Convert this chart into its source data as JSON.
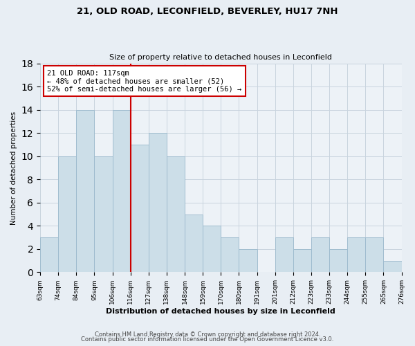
{
  "title1": "21, OLD ROAD, LECONFIELD, BEVERLEY, HU17 7NH",
  "title2": "Size of property relative to detached houses in Leconfield",
  "xlabel": "Distribution of detached houses by size in Leconfield",
  "ylabel": "Number of detached properties",
  "bin_labels": [
    "63sqm",
    "74sqm",
    "84sqm",
    "95sqm",
    "106sqm",
    "116sqm",
    "127sqm",
    "138sqm",
    "148sqm",
    "159sqm",
    "170sqm",
    "180sqm",
    "191sqm",
    "201sqm",
    "212sqm",
    "223sqm",
    "233sqm",
    "244sqm",
    "255sqm",
    "265sqm",
    "276sqm"
  ],
  "bar_values": [
    3,
    10,
    14,
    10,
    14,
    11,
    12,
    10,
    5,
    4,
    3,
    2,
    0,
    3,
    2,
    3,
    2,
    3,
    3,
    1,
    0
  ],
  "bar_color": "#ccdee8",
  "bar_edge_color": "#9ab8cc",
  "ref_line_index": 5,
  "ref_line_color": "#cc0000",
  "annotation_line1": "21 OLD ROAD: 117sqm",
  "annotation_line2": "← 48% of detached houses are smaller (52)",
  "annotation_line3": "52% of semi-detached houses are larger (56) →",
  "annotation_box_color": "#ffffff",
  "annotation_box_edge_color": "#cc0000",
  "ylim": [
    0,
    18
  ],
  "yticks": [
    0,
    2,
    4,
    6,
    8,
    10,
    12,
    14,
    16,
    18
  ],
  "footer1": "Contains HM Land Registry data © Crown copyright and database right 2024.",
  "footer2": "Contains public sector information licensed under the Open Government Licence v3.0.",
  "background_color": "#e8eef4",
  "plot_background": "#edf2f7",
  "grid_color": "#c8d4de"
}
